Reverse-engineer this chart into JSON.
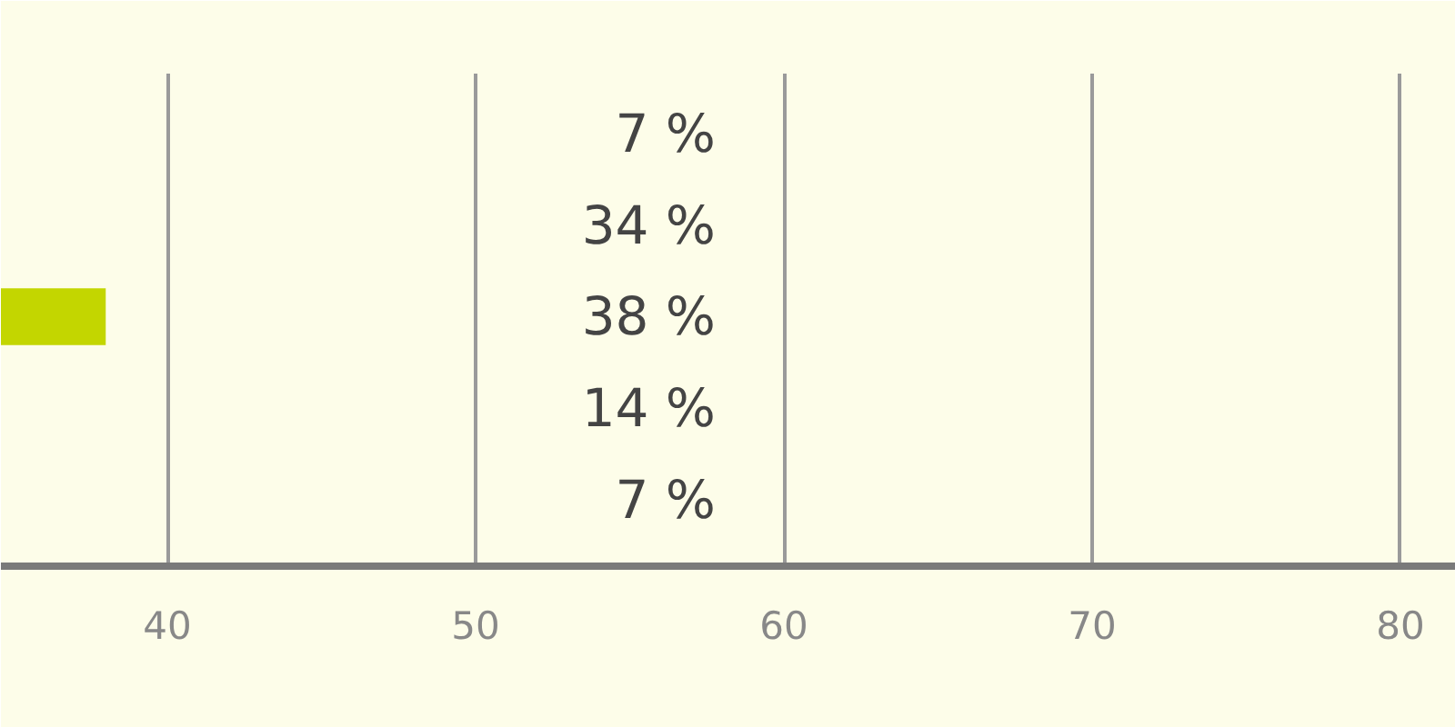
{
  "chart_data": {
    "type": "bar",
    "orientation": "horizontal",
    "categories": [
      "7 %",
      "34 %",
      "38 %",
      "14 %",
      "7 %"
    ],
    "values": [
      null,
      null,
      38,
      null,
      null
    ],
    "color": "#c3d600",
    "xlim": [
      34.6,
      81.8
    ],
    "xticks": [
      40,
      50,
      60,
      70,
      80
    ],
    "grid": "x"
  }
}
